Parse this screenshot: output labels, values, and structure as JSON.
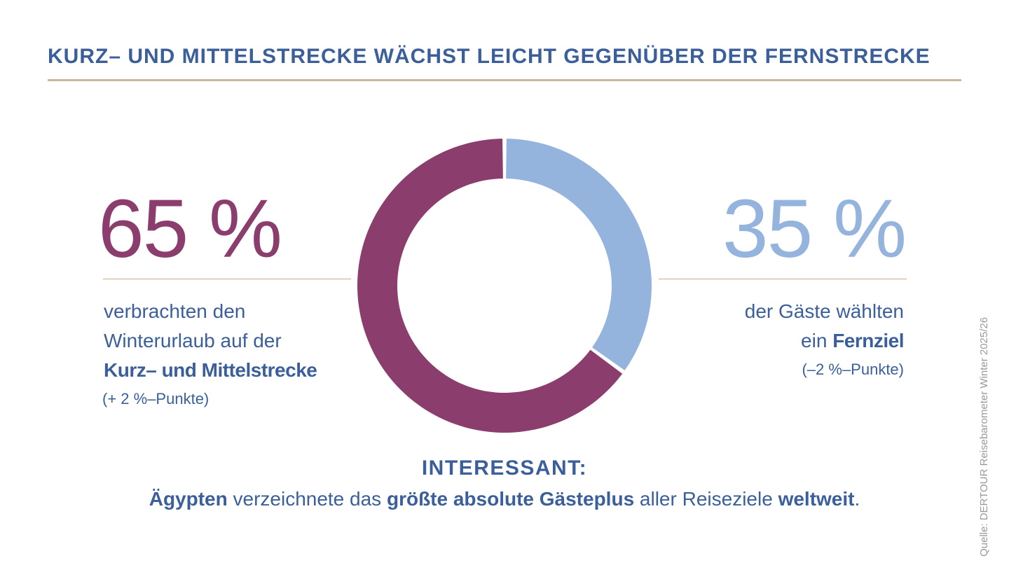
{
  "title": "KURZ– UND MITTELSTRECKE WÄCHST LEICHT GEGENÜBER DER FERNSTRECKE",
  "left": {
    "value_text": "65 %",
    "line1": "verbrachten den",
    "line2": "Winterurlaub auf der",
    "line3": "Kurz– und Mittelstrecke",
    "change": "(+ 2 %–Punkte)"
  },
  "right": {
    "value_text": "35 %",
    "line1": "der Gäste wählten",
    "line2_prefix": "ein ",
    "line2_strong": "Fernziel",
    "change": "(–2 %–Punkte)"
  },
  "interesting": {
    "heading": "INTERESSANT:",
    "part1": "Ägypten",
    "part2": " verzeichnete das ",
    "part3": "größte absolute Gästeplus",
    "part4": " aller Reiseziele ",
    "part5": "weltweit",
    "part6": "."
  },
  "source": "Quelle: DERTOUR Reisebarometer Winter 2025/26",
  "chart_data": {
    "type": "pie",
    "variant": "donut",
    "title": "KURZ– UND MITTELSTRECKE WÄCHST LEICHT GEGENÜBER DER FERNSTRECKE",
    "slices": [
      {
        "label": "Fernziel",
        "value": 35,
        "color": "#94b3dd"
      },
      {
        "label": "Kurz– und Mittelstrecke",
        "value": 65,
        "color": "#8b3e6e"
      }
    ],
    "start_angle": "12 o'clock",
    "direction": "clockwise"
  },
  "colors": {
    "accent_purple": "#8b3e6e",
    "accent_blue": "#94b3dd",
    "text_blue": "#3b5f9a",
    "rule": "#c8b89a"
  }
}
